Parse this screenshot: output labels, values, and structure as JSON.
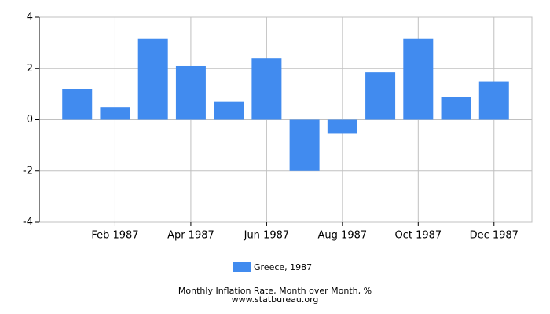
{
  "chart_data": {
    "type": "bar",
    "title": "Monthly Inflation Rate, Month over Month, %",
    "subtitle": "www.statbureau.org",
    "categories": [
      null,
      "Feb 1987",
      null,
      "Apr 1987",
      null,
      "Jun 1987",
      null,
      "Aug 1987",
      null,
      "Oct 1987",
      null,
      "Dec 1987"
    ],
    "series": [
      {
        "name": "Greece, 1987",
        "color": "#418bef",
        "values": [
          1.2,
          0.5,
          3.15,
          2.1,
          0.7,
          2.4,
          -2.0,
          -0.55,
          1.85,
          3.15,
          0.9,
          1.5
        ]
      }
    ],
    "ylim": [
      -4,
      4
    ],
    "yticks": [
      -4,
      -2,
      0,
      2,
      4
    ],
    "grid": true
  }
}
